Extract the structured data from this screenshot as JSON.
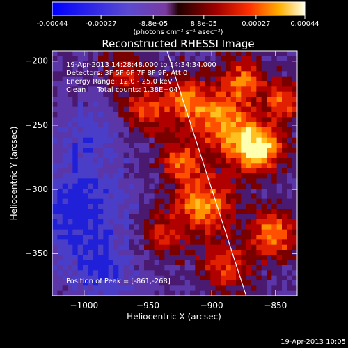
{
  "colorbar": {
    "ticks": [
      "-0.00044",
      "-0.00027",
      "-8.8e-05",
      "8.8e-05",
      "0.00027",
      "0.00044"
    ],
    "tick_values": [
      -0.00044,
      -0.00027,
      -8.8e-05,
      8.8e-05,
      0.00027,
      0.00044
    ],
    "range": [
      -0.00044,
      0.00044
    ],
    "units": "(photons cm⁻² s⁻¹ asec⁻²)"
  },
  "chart_data": {
    "type": "heatmap",
    "title": "Reconstructed RHESSI Image",
    "xlabel": "Heliocentric X (arcsec)",
    "ylabel": "Heliocentric Y (arcsec)",
    "xlim": [
      -1025,
      -833
    ],
    "ylim": [
      -383,
      -192
    ],
    "xticks": [
      -1000,
      -950,
      -900,
      -850
    ],
    "yticks": [
      -200,
      -250,
      -300,
      -350
    ],
    "limb_line": [
      [
        -935,
        -192
      ],
      [
        -873,
        -383
      ]
    ],
    "annotations": {
      "time": "19-Apr-2013 14:28:48.000 to 14:34:34.000",
      "detectors": "Detectors: 3F 5F 6F 7F 8F 9F, Att 0",
      "energy": "Energy Range: 12.0 - 25.0 keV",
      "clean": "Clean     Total counts: 1.38E+04",
      "peak": "Position of Peak = [-861,-268]"
    },
    "peak_position": [
      -861,
      -268
    ]
  },
  "footer": {
    "timestamp": "19-Apr-2013 10:05"
  }
}
